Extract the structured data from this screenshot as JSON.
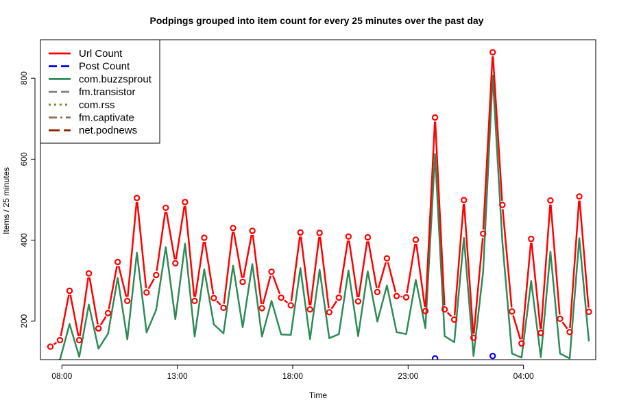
{
  "chart_data": {
    "type": "line",
    "title": "Podpings grouped into item count for every 25 minutes  over the past  day",
    "xlabel": "Time",
    "ylabel": "Items / 25 minutes",
    "x_tick_labels": [
      "08:00",
      "13:00",
      "18:00",
      "23:00",
      "04:00"
    ],
    "x_tick_hours": [
      8,
      13,
      18,
      23,
      28
    ],
    "y_ticks": [
      200,
      400,
      600,
      800
    ],
    "ylim": [
      105,
      895
    ],
    "xlim_hours": [
      7.07,
      31.13
    ],
    "x_start_hour": 7.5,
    "x_step_minutes": 25,
    "legend_position": "top-left",
    "grid": false,
    "legend": [
      {
        "name": "Url Count",
        "color": "#ff0000",
        "dash": "solid"
      },
      {
        "name": "Post Count",
        "color": "#0000ff",
        "dash": "dashed"
      },
      {
        "name": "com.buzzsprout",
        "color": "#2e8b57",
        "dash": "solid"
      },
      {
        "name": "fm.transistor",
        "color": "#808080",
        "dash": "dashed"
      },
      {
        "name": "com.rss",
        "color": "#6b8e23",
        "dash": "dotted"
      },
      {
        "name": "fm.captivate",
        "color": "#8b7355",
        "dash": "dashdot"
      },
      {
        "name": "net.podnews",
        "color": "#8b2500",
        "dash": "longdash"
      }
    ],
    "series": [
      {
        "name": "Url Count",
        "color": "#ff0000",
        "values": [
          137,
          153,
          275,
          153,
          318,
          182,
          220,
          346,
          250,
          504,
          271,
          314,
          480,
          343,
          494,
          250,
          406,
          257,
          233,
          430,
          297,
          423,
          232,
          322,
          258,
          239,
          419,
          229,
          418,
          222,
          258,
          409,
          249,
          407,
          272,
          355,
          262,
          259,
          401,
          225,
          703,
          229,
          204,
          499,
          159,
          416,
          864,
          487,
          224,
          145,
          403,
          171,
          498,
          206,
          173,
          508,
          223
        ]
      },
      {
        "name": "Post Count",
        "color": "#0000ff",
        "values": [
          null,
          null,
          null,
          null,
          null,
          null,
          null,
          null,
          null,
          null,
          null,
          null,
          null,
          null,
          null,
          null,
          null,
          null,
          null,
          null,
          null,
          null,
          null,
          null,
          null,
          null,
          null,
          null,
          null,
          null,
          null,
          null,
          null,
          null,
          null,
          null,
          null,
          null,
          null,
          null,
          108,
          null,
          null,
          null,
          null,
          null,
          114,
          null,
          null,
          null,
          null,
          null,
          null,
          null,
          null,
          null,
          null
        ]
      },
      {
        "name": "com.buzzsprout",
        "color": "#2e8b57",
        "values": [
          100,
          105,
          193,
          112,
          241,
          132,
          169,
          307,
          155,
          369,
          172,
          228,
          383,
          205,
          391,
          162,
          328,
          192,
          170,
          337,
          185,
          341,
          162,
          250,
          167,
          166,
          331,
          156,
          327,
          158,
          168,
          325,
          163,
          323,
          199,
          288,
          173,
          168,
          302,
          183,
          613,
          163,
          148,
          406,
          114,
          321,
          806,
          396,
          120,
          110,
          299,
          111,
          372,
          120,
          108,
          405,
          150
        ]
      }
    ]
  }
}
